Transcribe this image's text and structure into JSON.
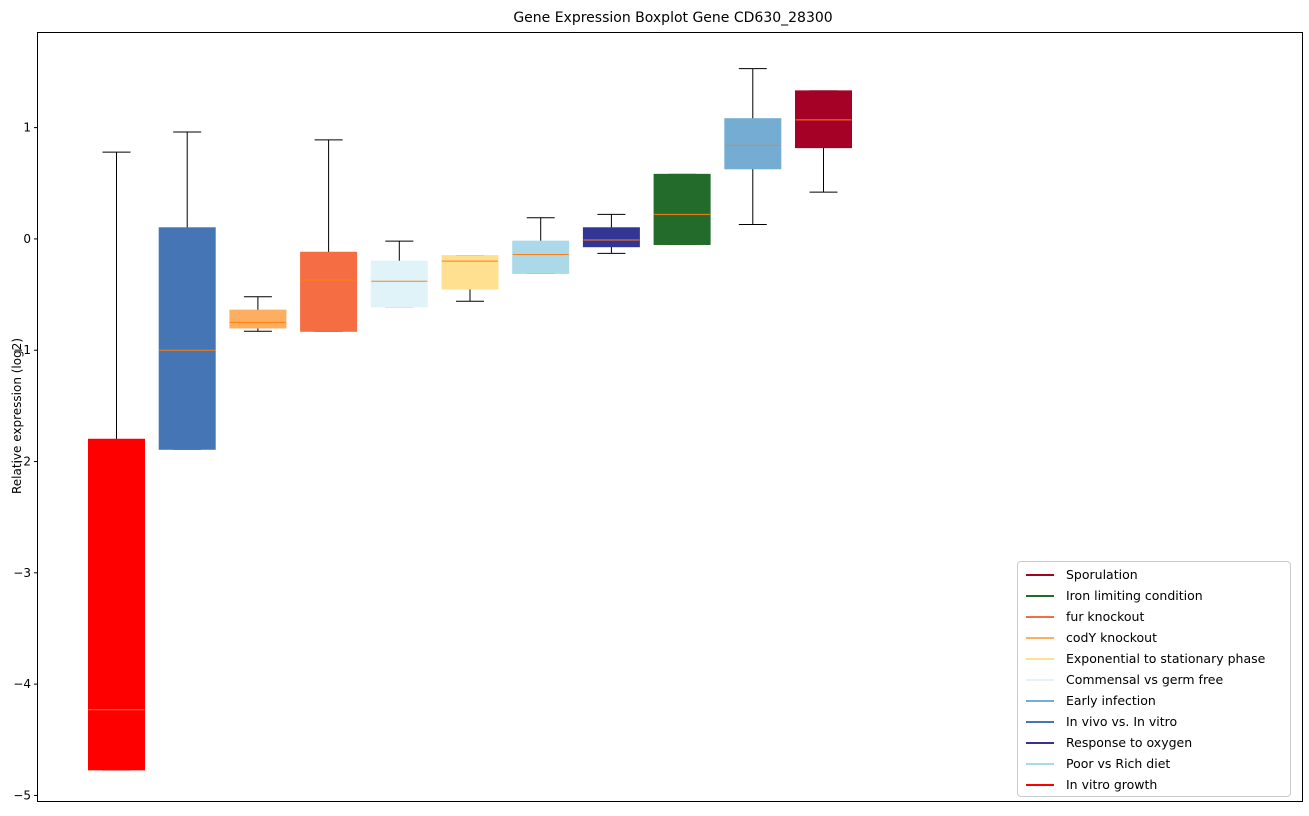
{
  "chart_data": {
    "type": "boxplot",
    "title": "Gene Expression Boxplot Gene CD630_28300",
    "xlabel": "",
    "ylabel": "Relative expression (log2)",
    "ylim": [
      -5.05,
      1.85
    ],
    "yticks": [
      -5,
      -4,
      -3,
      -2,
      -1,
      0,
      1
    ],
    "ytick_labels": [
      "−5",
      "−4",
      "−3",
      "−2",
      "−1",
      "0",
      "1"
    ],
    "grid": false,
    "legend_position": "lower-right",
    "median_color": "#ff7f0e",
    "series": [
      {
        "name": "In vitro growth",
        "color": "#ff0000",
        "whisker_low": -4.77,
        "q1": -4.77,
        "median": -4.23,
        "q3": -1.8,
        "whisker_high": 0.78
      },
      {
        "name": "In vivo vs. In vitro",
        "color": "#4575b4",
        "whisker_low": -1.89,
        "q1": -1.89,
        "median": -1.0,
        "q3": 0.1,
        "whisker_high": 0.96
      },
      {
        "name": "codY knockout",
        "color": "#fdae61",
        "whisker_low": -0.83,
        "q1": -0.8,
        "median": -0.75,
        "q3": -0.64,
        "whisker_high": -0.52
      },
      {
        "name": "fur knockout",
        "color": "#f46d43",
        "whisker_low": -0.83,
        "q1": -0.83,
        "median": -0.37,
        "q3": -0.12,
        "whisker_high": 0.89
      },
      {
        "name": "Commensal vs germ free",
        "color": "#e0f3f8",
        "whisker_low": -0.61,
        "q1": -0.61,
        "median": -0.38,
        "q3": -0.2,
        "whisker_high": -0.02
      },
      {
        "name": "Exponential to stationary phase",
        "color": "#fee090",
        "whisker_low": -0.56,
        "q1": -0.45,
        "median": -0.2,
        "q3": -0.15,
        "whisker_high": -0.15
      },
      {
        "name": "Poor vs Rich diet",
        "color": "#abd9e9",
        "whisker_low": -0.31,
        "q1": -0.31,
        "median": -0.14,
        "q3": -0.02,
        "whisker_high": 0.19
      },
      {
        "name": "Response to oxygen",
        "color": "#313695",
        "whisker_low": -0.13,
        "q1": -0.07,
        "median": -0.01,
        "q3": 0.1,
        "whisker_high": 0.22
      },
      {
        "name": "Iron limiting condition",
        "color": "#226b2a",
        "whisker_low": -0.05,
        "q1": -0.05,
        "median": 0.22,
        "q3": 0.58,
        "whisker_high": 0.58
      },
      {
        "name": "Early infection",
        "color": "#74add1",
        "whisker_low": 0.13,
        "q1": 0.63,
        "median": 0.84,
        "q3": 1.08,
        "whisker_high": 1.53
      },
      {
        "name": "Sporulation",
        "color": "#a50026",
        "whisker_low": 0.42,
        "q1": 0.82,
        "median": 1.07,
        "q3": 1.33,
        "whisker_high": 1.33
      }
    ],
    "legend": [
      {
        "label": "Sporulation",
        "color": "#a50026"
      },
      {
        "label": "Iron limiting condition",
        "color": "#226b2a"
      },
      {
        "label": "fur knockout",
        "color": "#f46d43"
      },
      {
        "label": "codY knockout",
        "color": "#fdae61"
      },
      {
        "label": "Exponential to stationary phase",
        "color": "#fee090"
      },
      {
        "label": "Commensal vs germ free",
        "color": "#e0f3f8"
      },
      {
        "label": "Early infection",
        "color": "#74add1"
      },
      {
        "label": "In vivo vs. In vitro",
        "color": "#4575b4"
      },
      {
        "label": "Response to oxygen",
        "color": "#313695"
      },
      {
        "label": "Poor vs Rich diet",
        "color": "#abd9e9"
      },
      {
        "label": "In vitro growth",
        "color": "#ff0000"
      }
    ]
  }
}
